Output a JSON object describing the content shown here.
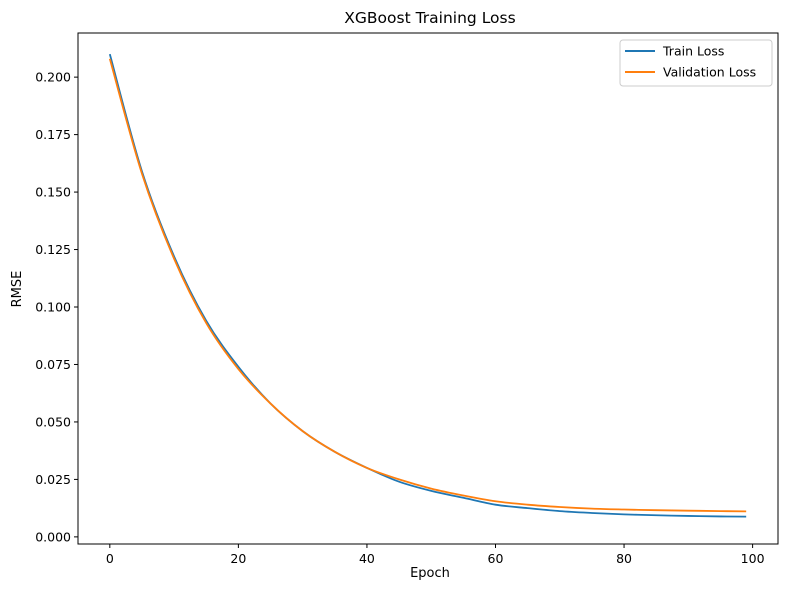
{
  "chart_data": {
    "type": "line",
    "title": "XGBoost Training Loss",
    "xlabel": "Epoch",
    "ylabel": "RMSE",
    "xlim": [
      -4.95,
      103.95
    ],
    "ylim": [
      -0.0031,
      0.2192
    ],
    "x_ticks": [
      0,
      20,
      40,
      60,
      80,
      100
    ],
    "x_tick_labels": [
      "0",
      "20",
      "40",
      "60",
      "80",
      "100"
    ],
    "y_ticks": [
      0.0,
      0.025,
      0.05,
      0.075,
      0.1,
      0.125,
      0.15,
      0.175,
      0.2
    ],
    "y_tick_labels": [
      "0.000",
      "0.025",
      "0.050",
      "0.075",
      "0.100",
      "0.125",
      "0.150",
      "0.175",
      "0.200"
    ],
    "grid": false,
    "legend_position": "top-right",
    "x": [
      0,
      5,
      10,
      15,
      20,
      25,
      30,
      35,
      40,
      45,
      50,
      55,
      60,
      65,
      70,
      75,
      80,
      85,
      90,
      95,
      99
    ],
    "series": [
      {
        "name": "Train Loss",
        "color": "#1f77b4",
        "values": [
          0.21,
          0.159,
          0.122,
          0.094,
          0.074,
          0.058,
          0.046,
          0.037,
          0.03,
          0.024,
          0.02,
          0.017,
          0.014,
          0.0125,
          0.0112,
          0.0104,
          0.0098,
          0.0094,
          0.0091,
          0.0089,
          0.0088
        ]
      },
      {
        "name": "Validation Loss",
        "color": "#ff7f0e",
        "values": [
          0.208,
          0.158,
          0.121,
          0.093,
          0.073,
          0.058,
          0.046,
          0.037,
          0.03,
          0.025,
          0.021,
          0.018,
          0.0155,
          0.014,
          0.013,
          0.0123,
          0.0119,
          0.0116,
          0.0114,
          0.0112,
          0.0111
        ]
      }
    ]
  }
}
